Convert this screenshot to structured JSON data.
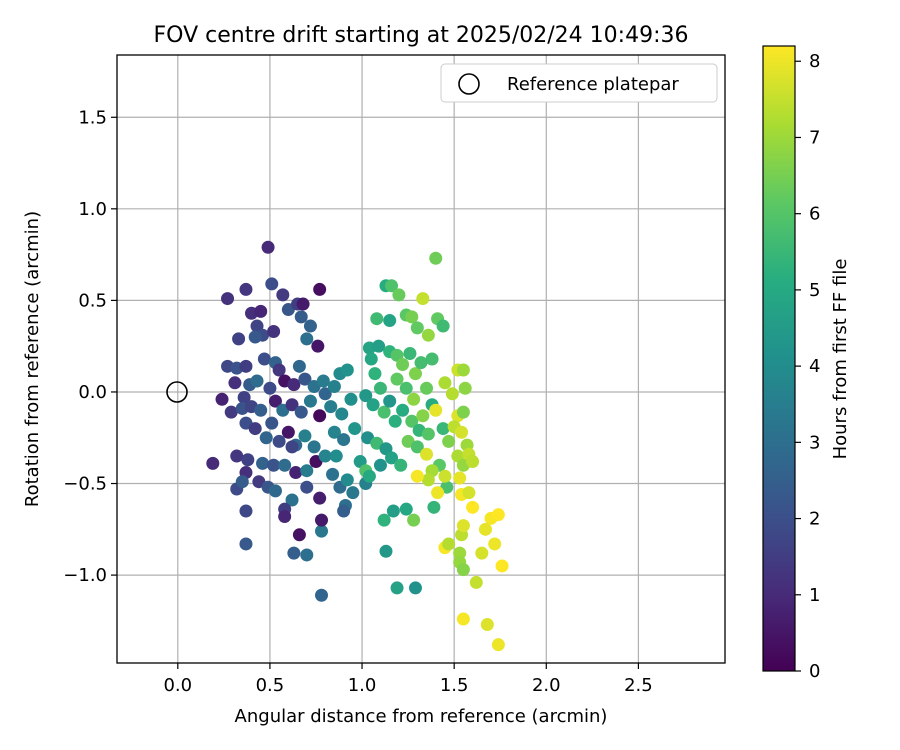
{
  "chart_data": {
    "type": "scatter",
    "title": "FOV centre drift starting at 2025/02/24 10:49:36",
    "xlabel": "Angular distance from reference (arcmin)",
    "ylabel": "Rotation from reference (arcmin)",
    "xlim": [
      -0.33,
      2.97
    ],
    "ylim": [
      -1.48,
      1.84
    ],
    "xticks": [
      0.0,
      0.5,
      1.0,
      1.5,
      2.0,
      2.5
    ],
    "xtick_labels": [
      "0.0",
      "0.5",
      "1.0",
      "1.5",
      "2.0",
      "2.5"
    ],
    "yticks": [
      -1.0,
      -0.5,
      0.0,
      0.5,
      1.0,
      1.5
    ],
    "ytick_labels": [
      "−1.0",
      "−0.5",
      "0.0",
      "0.5",
      "1.0",
      "1.5"
    ],
    "grid": true,
    "legend": {
      "position": "top-right",
      "entries": [
        "Reference platepar"
      ]
    },
    "reference_point": {
      "x": 0.0,
      "y": 0.0,
      "label": "Reference platepar"
    },
    "colorbar": {
      "label": "Hours from first FF file",
      "colormap": "viridis",
      "range": [
        0,
        8.2
      ],
      "ticks": [
        0,
        1,
        2,
        3,
        4,
        5,
        6,
        7,
        8
      ],
      "tick_labels": [
        "0",
        "1",
        "2",
        "3",
        "4",
        "5",
        "6",
        "7",
        "8"
      ]
    },
    "points": [
      {
        "x": 0.24,
        "y": -0.04,
        "h": 0.8
      },
      {
        "x": 0.27,
        "y": 0.51,
        "h": 1.2
      },
      {
        "x": 0.33,
        "y": 0.29,
        "h": 1.6
      },
      {
        "x": 0.37,
        "y": 0.56,
        "h": 1.3
      },
      {
        "x": 0.49,
        "y": 0.79,
        "h": 1.0
      },
      {
        "x": 0.51,
        "y": 0.59,
        "h": 2.0
      },
      {
        "x": 0.57,
        "y": 0.53,
        "h": 1.4
      },
      {
        "x": 0.6,
        "y": 0.45,
        "h": 2.2
      },
      {
        "x": 0.4,
        "y": 0.43,
        "h": 1.1
      },
      {
        "x": 0.45,
        "y": 0.44,
        "h": 0.9
      },
      {
        "x": 0.43,
        "y": 0.36,
        "h": 1.7
      },
      {
        "x": 0.46,
        "y": 0.31,
        "h": 1.9
      },
      {
        "x": 0.42,
        "y": 0.3,
        "h": 2.3
      },
      {
        "x": 0.52,
        "y": 0.33,
        "h": 1.2
      },
      {
        "x": 0.65,
        "y": 0.48,
        "h": 1.5
      },
      {
        "x": 0.67,
        "y": 0.41,
        "h": 2.4
      },
      {
        "x": 0.72,
        "y": 0.36,
        "h": 2.6
      },
      {
        "x": 0.7,
        "y": 0.29,
        "h": 3.0
      },
      {
        "x": 0.77,
        "y": 0.56,
        "h": 0.3
      },
      {
        "x": 0.76,
        "y": 0.25,
        "h": 0.5
      },
      {
        "x": 0.68,
        "y": 0.48,
        "h": 0.6
      },
      {
        "x": 0.27,
        "y": 0.14,
        "h": 1.8
      },
      {
        "x": 0.32,
        "y": 0.13,
        "h": 2.1
      },
      {
        "x": 0.37,
        "y": 0.14,
        "h": 1.5
      },
      {
        "x": 0.47,
        "y": 0.18,
        "h": 2.0
      },
      {
        "x": 0.53,
        "y": 0.16,
        "h": 2.6
      },
      {
        "x": 0.55,
        "y": 0.12,
        "h": 1.3
      },
      {
        "x": 0.66,
        "y": 0.14,
        "h": 2.8
      },
      {
        "x": 0.31,
        "y": 0.05,
        "h": 1.1
      },
      {
        "x": 0.36,
        "y": -0.03,
        "h": 1.6
      },
      {
        "x": 0.39,
        "y": 0.04,
        "h": 2.4
      },
      {
        "x": 0.43,
        "y": 0.06,
        "h": 2.9
      },
      {
        "x": 0.5,
        "y": 0.02,
        "h": 1.9
      },
      {
        "x": 0.58,
        "y": 0.06,
        "h": 0.4
      },
      {
        "x": 0.63,
        "y": 0.04,
        "h": 1.0
      },
      {
        "x": 0.69,
        "y": 0.07,
        "h": 2.2
      },
      {
        "x": 0.74,
        "y": 0.03,
        "h": 3.1
      },
      {
        "x": 0.79,
        "y": 0.06,
        "h": 3.4
      },
      {
        "x": 0.8,
        "y": -0.01,
        "h": 2.7
      },
      {
        "x": 0.29,
        "y": -0.11,
        "h": 1.4
      },
      {
        "x": 0.35,
        "y": -0.09,
        "h": 2.1
      },
      {
        "x": 0.4,
        "y": -0.08,
        "h": 1.7
      },
      {
        "x": 0.45,
        "y": -0.1,
        "h": 2.5
      },
      {
        "x": 0.53,
        "y": -0.05,
        "h": 0.7
      },
      {
        "x": 0.57,
        "y": -0.1,
        "h": 3.0
      },
      {
        "x": 0.62,
        "y": -0.07,
        "h": 1.2
      },
      {
        "x": 0.67,
        "y": -0.11,
        "h": 2.3
      },
      {
        "x": 0.72,
        "y": -0.05,
        "h": 3.3
      },
      {
        "x": 0.77,
        "y": -0.13,
        "h": 0.2
      },
      {
        "x": 0.37,
        "y": -0.17,
        "h": 2.0
      },
      {
        "x": 0.42,
        "y": -0.2,
        "h": 1.5
      },
      {
        "x": 0.48,
        "y": -0.25,
        "h": 2.7
      },
      {
        "x": 0.55,
        "y": -0.27,
        "h": 1.9
      },
      {
        "x": 0.6,
        "y": -0.22,
        "h": 0.5
      },
      {
        "x": 0.64,
        "y": -0.29,
        "h": 2.8
      },
      {
        "x": 0.69,
        "y": -0.24,
        "h": 3.6
      },
      {
        "x": 0.74,
        "y": -0.3,
        "h": 3.2
      },
      {
        "x": 0.51,
        "y": -0.17,
        "h": 2.2
      },
      {
        "x": 0.32,
        "y": -0.35,
        "h": 1.3
      },
      {
        "x": 0.38,
        "y": -0.37,
        "h": 1.6
      },
      {
        "x": 0.46,
        "y": -0.39,
        "h": 2.6
      },
      {
        "x": 0.52,
        "y": -0.4,
        "h": 2.1
      },
      {
        "x": 0.58,
        "y": -0.4,
        "h": 2.9
      },
      {
        "x": 0.64,
        "y": -0.44,
        "h": 0.8
      },
      {
        "x": 0.7,
        "y": -0.43,
        "h": 3.4
      },
      {
        "x": 0.75,
        "y": -0.38,
        "h": 0.3
      },
      {
        "x": 0.8,
        "y": -0.35,
        "h": 3.7
      },
      {
        "x": 0.37,
        "y": -0.44,
        "h": 1.1
      },
      {
        "x": 0.32,
        "y": -0.53,
        "h": 1.9
      },
      {
        "x": 0.35,
        "y": -0.49,
        "h": 2.4
      },
      {
        "x": 0.44,
        "y": -0.49,
        "h": 1.4
      },
      {
        "x": 0.49,
        "y": -0.52,
        "h": 2.2
      },
      {
        "x": 0.53,
        "y": -0.54,
        "h": 2.8
      },
      {
        "x": 0.62,
        "y": -0.59,
        "h": 3.1
      },
      {
        "x": 0.7,
        "y": -0.52,
        "h": 2.0
      },
      {
        "x": 0.77,
        "y": -0.58,
        "h": 0.7
      },
      {
        "x": 0.58,
        "y": -0.64,
        "h": 1.5
      },
      {
        "x": 0.58,
        "y": -0.68,
        "h": 0.9
      },
      {
        "x": 0.37,
        "y": -0.65,
        "h": 1.8
      },
      {
        "x": 0.66,
        "y": -0.78,
        "h": 0.4
      },
      {
        "x": 0.37,
        "y": -0.83,
        "h": 2.3
      },
      {
        "x": 0.63,
        "y": -0.88,
        "h": 2.5
      },
      {
        "x": 0.7,
        "y": -0.89,
        "h": 3.0
      },
      {
        "x": 0.78,
        "y": -0.76,
        "h": 3.3
      },
      {
        "x": 0.78,
        "y": -0.7,
        "h": 0.6
      },
      {
        "x": 0.78,
        "y": -1.11,
        "h": 2.7
      },
      {
        "x": 0.19,
        "y": -0.39,
        "h": 1.0
      },
      {
        "x": 0.62,
        "y": -0.3,
        "h": 1.7
      },
      {
        "x": 0.85,
        "y": 0.03,
        "h": 3.6
      },
      {
        "x": 0.88,
        "y": 0.1,
        "h": 3.9
      },
      {
        "x": 0.92,
        "y": 0.12,
        "h": 4.2
      },
      {
        "x": 0.83,
        "y": -0.08,
        "h": 3.5
      },
      {
        "x": 0.89,
        "y": -0.12,
        "h": 3.8
      },
      {
        "x": 0.94,
        "y": -0.04,
        "h": 4.1
      },
      {
        "x": 0.85,
        "y": -0.22,
        "h": 3.7
      },
      {
        "x": 0.9,
        "y": -0.26,
        "h": 3.2
      },
      {
        "x": 0.96,
        "y": -0.2,
        "h": 4.3
      },
      {
        "x": 0.84,
        "y": -0.45,
        "h": 3.1
      },
      {
        "x": 0.88,
        "y": -0.52,
        "h": 2.9
      },
      {
        "x": 0.92,
        "y": -0.48,
        "h": 3.9
      },
      {
        "x": 0.95,
        "y": -0.55,
        "h": 3.3
      },
      {
        "x": 0.86,
        "y": -0.35,
        "h": 4.0
      },
      {
        "x": 0.91,
        "y": -0.62,
        "h": 3.0
      },
      {
        "x": 0.9,
        "y": -0.65,
        "h": 2.5
      },
      {
        "x": 0.99,
        "y": -0.38,
        "h": 4.5
      },
      {
        "x": 1.02,
        "y": -0.5,
        "h": 3.6
      },
      {
        "x": 1.04,
        "y": 0.24,
        "h": 4.8
      },
      {
        "x": 1.05,
        "y": 0.18,
        "h": 4.9
      },
      {
        "x": 1.07,
        "y": 0.1,
        "h": 5.3
      },
      {
        "x": 1.09,
        "y": 0.25,
        "h": 4.6
      },
      {
        "x": 1.1,
        "y": 0.02,
        "h": 5.5
      },
      {
        "x": 1.02,
        "y": -0.02,
        "h": 4.4
      },
      {
        "x": 1.06,
        "y": -0.07,
        "h": 4.7
      },
      {
        "x": 1.12,
        "y": -0.11,
        "h": 5.8
      },
      {
        "x": 1.15,
        "y": -0.05,
        "h": 4.3
      },
      {
        "x": 1.18,
        "y": -0.16,
        "h": 5.2
      },
      {
        "x": 1.03,
        "y": -0.25,
        "h": 4.1
      },
      {
        "x": 1.08,
        "y": -0.28,
        "h": 5.6
      },
      {
        "x": 1.13,
        "y": -0.31,
        "h": 4.4
      },
      {
        "x": 1.02,
        "y": -0.43,
        "h": 5.9
      },
      {
        "x": 1.04,
        "y": -0.46,
        "h": 5.0
      },
      {
        "x": 1.1,
        "y": -0.4,
        "h": 4.2
      },
      {
        "x": 1.16,
        "y": -0.36,
        "h": 4.7
      },
      {
        "x": 1.21,
        "y": -0.4,
        "h": 5.4
      },
      {
        "x": 1.08,
        "y": 0.4,
        "h": 5.6
      },
      {
        "x": 1.13,
        "y": 0.58,
        "h": 5.1
      },
      {
        "x": 1.16,
        "y": 0.58,
        "h": 5.9
      },
      {
        "x": 1.2,
        "y": 0.53,
        "h": 6.3
      },
      {
        "x": 1.15,
        "y": 0.39,
        "h": 4.8
      },
      {
        "x": 1.24,
        "y": 0.42,
        "h": 6.1
      },
      {
        "x": 1.27,
        "y": 0.41,
        "h": 6.5
      },
      {
        "x": 1.3,
        "y": 0.35,
        "h": 6.2
      },
      {
        "x": 1.15,
        "y": 0.22,
        "h": 5.3
      },
      {
        "x": 1.19,
        "y": 0.2,
        "h": 6.0
      },
      {
        "x": 1.22,
        "y": 0.15,
        "h": 6.4
      },
      {
        "x": 1.26,
        "y": 0.21,
        "h": 5.5
      },
      {
        "x": 1.29,
        "y": 0.1,
        "h": 6.6
      },
      {
        "x": 1.32,
        "y": 0.16,
        "h": 5.7
      },
      {
        "x": 1.19,
        "y": 0.07,
        "h": 6.2
      },
      {
        "x": 1.24,
        "y": 0.02,
        "h": 5.8
      },
      {
        "x": 1.28,
        "y": -0.04,
        "h": 6.8
      },
      {
        "x": 1.22,
        "y": -0.1,
        "h": 5.1
      },
      {
        "x": 1.27,
        "y": -0.16,
        "h": 6.0
      },
      {
        "x": 1.31,
        "y": -0.21,
        "h": 5.4
      },
      {
        "x": 1.25,
        "y": -0.27,
        "h": 6.4
      },
      {
        "x": 1.3,
        "y": -0.3,
        "h": 5.9
      },
      {
        "x": 1.12,
        "y": -0.7,
        "h": 5.3
      },
      {
        "x": 1.17,
        "y": -0.65,
        "h": 4.6
      },
      {
        "x": 1.24,
        "y": -0.64,
        "h": 4.9
      },
      {
        "x": 1.28,
        "y": -0.7,
        "h": 6.5
      },
      {
        "x": 1.13,
        "y": -0.87,
        "h": 4.4
      },
      {
        "x": 1.19,
        "y": -1.07,
        "h": 4.7
      },
      {
        "x": 1.29,
        "y": -1.07,
        "h": 4.2
      },
      {
        "x": 1.4,
        "y": 0.73,
        "h": 6.4
      },
      {
        "x": 1.41,
        "y": 0.4,
        "h": 6.2
      },
      {
        "x": 1.44,
        "y": 0.36,
        "h": 5.6
      },
      {
        "x": 1.33,
        "y": 0.51,
        "h": 7.5
      },
      {
        "x": 1.36,
        "y": 0.31,
        "h": 6.9
      },
      {
        "x": 1.38,
        "y": 0.18,
        "h": 5.7
      },
      {
        "x": 1.35,
        "y": 0.02,
        "h": 6.3
      },
      {
        "x": 1.38,
        "y": -0.07,
        "h": 5.1
      },
      {
        "x": 1.33,
        "y": -0.13,
        "h": 6.7
      },
      {
        "x": 1.36,
        "y": -0.23,
        "h": 6.0
      },
      {
        "x": 1.44,
        "y": -0.2,
        "h": 5.5
      },
      {
        "x": 1.47,
        "y": -0.27,
        "h": 6.6
      },
      {
        "x": 1.42,
        "y": -0.4,
        "h": 6.1
      },
      {
        "x": 1.46,
        "y": -0.52,
        "h": 5.8
      },
      {
        "x": 1.39,
        "y": -0.63,
        "h": 5.4
      },
      {
        "x": 1.45,
        "y": 0.05,
        "h": 7.2
      },
      {
        "x": 1.52,
        "y": 0.12,
        "h": 7.6
      },
      {
        "x": 1.55,
        "y": 0.12,
        "h": 7.0
      },
      {
        "x": 1.49,
        "y": -0.01,
        "h": 7.3
      },
      {
        "x": 1.56,
        "y": 0.02,
        "h": 6.8
      },
      {
        "x": 1.52,
        "y": -0.13,
        "h": 7.8
      },
      {
        "x": 1.55,
        "y": -0.11,
        "h": 6.6
      },
      {
        "x": 1.4,
        "y": -0.1,
        "h": 7.9
      },
      {
        "x": 1.5,
        "y": -0.19,
        "h": 7.4
      },
      {
        "x": 1.54,
        "y": -0.22,
        "h": 7.7
      },
      {
        "x": 1.57,
        "y": -0.29,
        "h": 7.0
      },
      {
        "x": 1.52,
        "y": -0.35,
        "h": 7.2
      },
      {
        "x": 1.55,
        "y": -0.4,
        "h": 6.9
      },
      {
        "x": 1.58,
        "y": -0.34,
        "h": 7.5
      },
      {
        "x": 1.35,
        "y": -0.34,
        "h": 7.8
      },
      {
        "x": 1.38,
        "y": -0.43,
        "h": 7.1
      },
      {
        "x": 1.45,
        "y": -0.46,
        "h": 7.6
      },
      {
        "x": 1.41,
        "y": -0.55,
        "h": 8.0
      },
      {
        "x": 1.36,
        "y": -0.48,
        "h": 7.3
      },
      {
        "x": 1.3,
        "y": -0.46,
        "h": 8.1
      },
      {
        "x": 1.53,
        "y": -0.47,
        "h": 7.9
      },
      {
        "x": 1.54,
        "y": -0.56,
        "h": 8.1
      },
      {
        "x": 1.58,
        "y": -0.55,
        "h": 7.7
      },
      {
        "x": 1.6,
        "y": -0.63,
        "h": 8.2
      },
      {
        "x": 1.45,
        "y": -0.85,
        "h": 8.1
      },
      {
        "x": 1.47,
        "y": -0.83,
        "h": 7.3
      },
      {
        "x": 1.54,
        "y": -0.78,
        "h": 7.4
      },
      {
        "x": 1.55,
        "y": -0.73,
        "h": 7.8
      },
      {
        "x": 1.53,
        "y": -0.88,
        "h": 7.0
      },
      {
        "x": 1.53,
        "y": -0.93,
        "h": 6.9
      },
      {
        "x": 1.55,
        "y": -0.97,
        "h": 6.7
      },
      {
        "x": 1.62,
        "y": -1.04,
        "h": 7.5
      },
      {
        "x": 1.65,
        "y": -0.88,
        "h": 7.7
      },
      {
        "x": 1.67,
        "y": -0.75,
        "h": 7.9
      },
      {
        "x": 1.7,
        "y": -0.69,
        "h": 8.1
      },
      {
        "x": 1.74,
        "y": -0.67,
        "h": 8.2
      },
      {
        "x": 1.72,
        "y": -0.83,
        "h": 8.0
      },
      {
        "x": 1.76,
        "y": -0.95,
        "h": 8.2
      },
      {
        "x": 1.55,
        "y": -1.24,
        "h": 8.1
      },
      {
        "x": 1.68,
        "y": -1.27,
        "h": 7.8
      },
      {
        "x": 1.74,
        "y": -1.38,
        "h": 8.0
      },
      {
        "x": 1.6,
        "y": -0.38,
        "h": 7.4
      }
    ]
  }
}
